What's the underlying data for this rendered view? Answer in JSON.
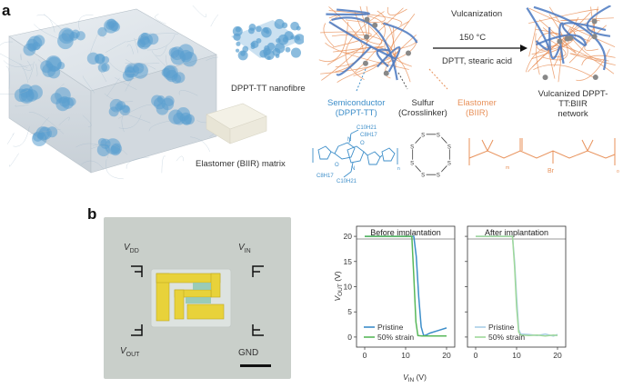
{
  "panel_a": {
    "label": "a",
    "nanofibre_label": "DPPT-TT nanofibre",
    "matrix_label": "Elastomer (BIIR) matrix",
    "vulcanization": "Vulcanization",
    "temperature": "150 °C",
    "reagents": "DPTT, stearic acid",
    "semiconductor_line1": "Semiconductor",
    "semiconductor_line2": "(DPPT-TT)",
    "sulfur_line1": "Sulfur",
    "sulfur_line2": "(Crosslinker)",
    "elastomer_line1": "Elastomer",
    "elastomer_line2": "(BIIR)",
    "network_line1": "Vulcanized DPPT-TT:BIIR",
    "network_line2": "network",
    "chem": {
      "c10h21_top": "C10H21",
      "c8h17_top": "C8H17",
      "c8h17_bot": "C8H17",
      "c10h21_bot": "C10H21",
      "o_top": "O",
      "o_bot": "O",
      "n_top": "N",
      "n_bot": "N",
      "s": "S",
      "br": "Br",
      "n_sub": "n",
      "m_sub": "m",
      "o_sub": "o"
    }
  },
  "panel_b": {
    "label": "b",
    "vdd": "V",
    "vdd_sub": "DD",
    "vin": "V",
    "vin_sub": "IN",
    "vout": "V",
    "vout_sub": "OUT",
    "gnd": "GND"
  },
  "colors": {
    "pristine": "#3d8ec9",
    "strain": "#58b85a",
    "pristine_after": "#a9cfe8",
    "strain_after": "#9fd89a",
    "fibre_blue": "#5a9fd0",
    "elastomer_orange": "#e8915a"
  },
  "chart_data": [
    {
      "type": "line",
      "title": "Before implantation",
      "xlabel": "VIN (V)",
      "ylabel": "VOUT (V)",
      "xlim": [
        -2,
        22
      ],
      "ylim": [
        -2,
        22
      ],
      "xticks": [
        0,
        10,
        20
      ],
      "yticks": [
        0,
        5,
        10,
        15,
        20
      ],
      "legend": "bottom-right",
      "series": [
        {
          "name": "Pristine",
          "x": [
            0,
            5,
            10,
            12,
            12.6,
            13.2,
            13.8,
            14.4,
            15,
            16,
            18,
            20
          ],
          "y": [
            20,
            20,
            20,
            20,
            16,
            8,
            2,
            0.3,
            0.4,
            0.8,
            1.3,
            1.8
          ]
        },
        {
          "name": "50% strain",
          "x": [
            0,
            5,
            10,
            11.5,
            12,
            12.5,
            13,
            14,
            16,
            18,
            20
          ],
          "y": [
            20,
            20,
            20,
            20,
            12,
            3,
            0.3,
            0.2,
            0.2,
            0.2,
            0.2
          ]
        }
      ]
    },
    {
      "type": "line",
      "title": "After implantation",
      "xlabel": "",
      "ylabel": "",
      "xlim": [
        -2,
        22
      ],
      "ylim": [
        -2,
        22
      ],
      "xticks": [
        0,
        10,
        20
      ],
      "yticks": [
        0,
        5,
        10,
        15,
        20
      ],
      "legend": "bottom-right",
      "series": [
        {
          "name": "Pristine",
          "x": [
            0,
            5,
            9,
            9.5,
            10,
            10.5,
            11,
            13,
            15,
            17,
            19,
            20
          ],
          "y": [
            20,
            20,
            20,
            15,
            8,
            1.5,
            0.6,
            0.5,
            0.3,
            0.6,
            0.2,
            0.5
          ]
        },
        {
          "name": "50% strain",
          "x": [
            0,
            5,
            9,
            9.5,
            10,
            10.5,
            11,
            13,
            15,
            17,
            19,
            20
          ],
          "y": [
            20,
            20,
            20,
            14,
            6,
            1,
            0.4,
            0.3,
            0.4,
            0.2,
            0.4,
            0.3
          ]
        }
      ]
    }
  ]
}
